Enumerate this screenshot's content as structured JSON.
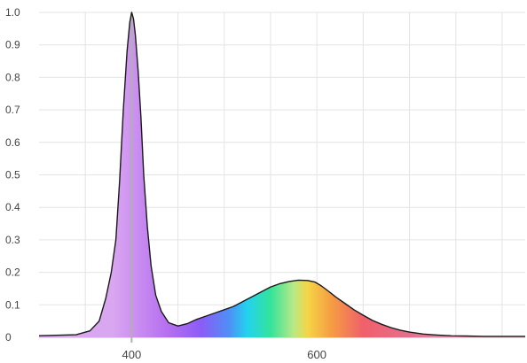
{
  "chart_data": {
    "type": "area",
    "title": "",
    "xlabel": "",
    "ylabel": "",
    "xlim": [
      300,
      825
    ],
    "ylim": [
      0,
      1.0
    ],
    "x_ticks": [
      400,
      600
    ],
    "x_tick_labels": [
      "400",
      "600"
    ],
    "y_ticks": [
      0,
      0.1,
      0.2,
      0.3,
      0.4,
      0.5,
      0.6,
      0.7,
      0.8,
      0.9,
      1.0
    ],
    "y_tick_labels": [
      "0",
      "0.1",
      "0.2",
      "0.3",
      "0.4",
      "0.5",
      "0.6",
      "0.7",
      "0.8",
      "0.9",
      "1.0"
    ],
    "grid": true,
    "marker_line_x": 400,
    "fill": "visible-spectrum gradient under the curve",
    "series": [
      {
        "x": [
          300,
          340,
          355,
          365,
          372,
          378,
          383,
          387,
          391,
          395,
          398,
          400,
          402,
          404,
          407,
          410,
          413,
          417,
          421,
          426,
          432,
          440,
          450,
          460,
          470,
          480,
          490,
          500,
          510,
          520,
          530,
          540,
          550,
          560,
          570,
          580,
          590,
          598,
          605,
          612,
          620,
          630,
          640,
          650,
          660,
          670,
          680,
          690,
          700,
          715,
          730,
          745,
          760,
          780,
          800,
          825
        ],
        "y": [
          0.005,
          0.008,
          0.02,
          0.05,
          0.12,
          0.2,
          0.3,
          0.48,
          0.7,
          0.88,
          0.97,
          1.0,
          0.98,
          0.93,
          0.82,
          0.68,
          0.5,
          0.34,
          0.22,
          0.13,
          0.08,
          0.045,
          0.035,
          0.042,
          0.055,
          0.065,
          0.075,
          0.085,
          0.095,
          0.11,
          0.125,
          0.14,
          0.155,
          0.165,
          0.172,
          0.176,
          0.175,
          0.17,
          0.158,
          0.143,
          0.125,
          0.105,
          0.085,
          0.068,
          0.052,
          0.04,
          0.03,
          0.022,
          0.016,
          0.01,
          0.007,
          0.005,
          0.004,
          0.003,
          0.003,
          0.003
        ]
      }
    ],
    "colors": {
      "grid": "#e4e4e4",
      "axis": "#bbbbbb",
      "curve": "#1a1a1a",
      "marker_line": "#b0b0b0",
      "spectrum": {
        "380": "#d9a6f0",
        "440": "#b56ef0",
        "475": "#8b5cf6",
        "505": "#4f8ef7",
        "525": "#22d3ee",
        "550": "#34e39a",
        "575": "#b8e986",
        "590": "#f5d547",
        "615": "#f59e42",
        "650": "#f0606a",
        "700": "#e56e8e",
        "780": "#e9a7b8"
      }
    }
  }
}
